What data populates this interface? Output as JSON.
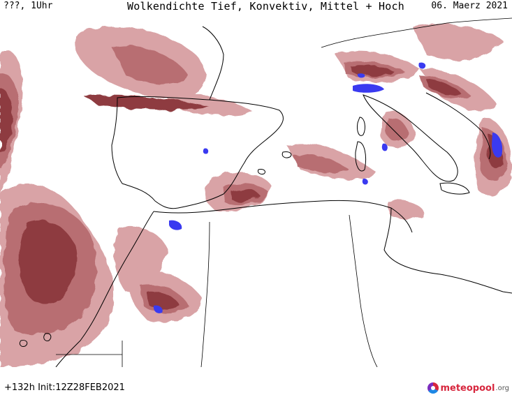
{
  "header": {
    "left": "???, 1Uhr",
    "title": "Wolkendichte  Tief, Konvektiv, Mittel + Hoch",
    "date": "06. Maerz 2021"
  },
  "footer": {
    "run_info": "+132h Init:12Z28FEB2021",
    "logo_brand": "meteopool",
    "logo_suffix": ".org"
  },
  "map": {
    "colors": {
      "light": "#d9a3a6",
      "medium": "#b86e72",
      "dark": "#8e3b3f",
      "convective": "#3a3af0",
      "coast": "#000000"
    }
  }
}
